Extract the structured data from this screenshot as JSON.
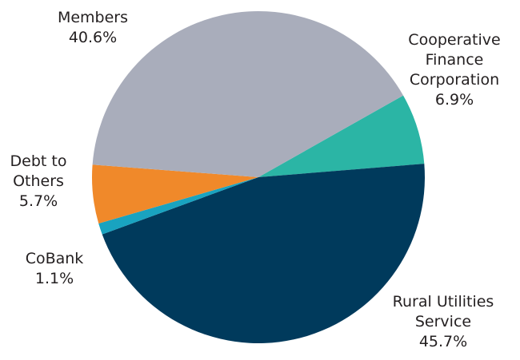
{
  "chart_data": {
    "type": "pie",
    "slices": [
      {
        "name": "Cooperative Finance Corporation",
        "label_lines": [
          "Cooperative",
          "Finance",
          "Corporation"
        ],
        "value_label": "6.9%",
        "value": 6.9,
        "color": "#2bb5a5"
      },
      {
        "name": "Rural Utilities Service",
        "label_lines": [
          "Rural Utilities",
          "Service"
        ],
        "value_label": "45.7%",
        "value": 45.7,
        "color": "#003a5c"
      },
      {
        "name": "CoBank",
        "label_lines": [
          "CoBank"
        ],
        "value_label": "1.1%",
        "value": 1.1,
        "color": "#19a3c0"
      },
      {
        "name": "Debt to Others",
        "label_lines": [
          "Debt to",
          "Others"
        ],
        "value_label": "5.7%",
        "value": 5.7,
        "color": "#f0892a"
      },
      {
        "name": "Members",
        "label_lines": [
          "Members"
        ],
        "value_label": "40.6%",
        "value": 40.6,
        "color": "#a9adbb"
      }
    ],
    "legend": "none",
    "labels": "outside"
  }
}
